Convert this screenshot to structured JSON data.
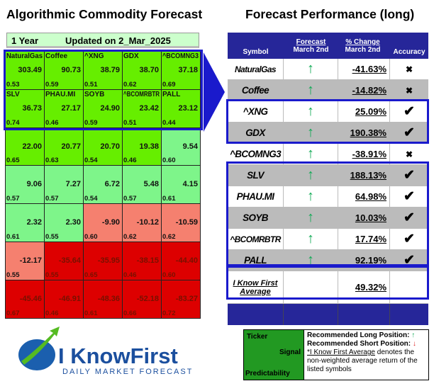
{
  "left": {
    "title": "Algorithmic Commodity Forecast",
    "period": "1 Year",
    "updated": "Updated on 2_Mar_2025",
    "cells": [
      {
        "ticker": "NaturalGas",
        "value": "303.49",
        "pred": "0.53",
        "color": "green"
      },
      {
        "ticker": "Coffee",
        "value": "90.73",
        "pred": "0.59",
        "color": "green"
      },
      {
        "ticker": "^XNG",
        "value": "38.79",
        "pred": "0.51",
        "color": "green"
      },
      {
        "ticker": "GDX",
        "value": "38.70",
        "pred": "0.62",
        "color": "green"
      },
      {
        "ticker": "^BCOMNG3",
        "value": "37.18",
        "pred": "0.69",
        "color": "green"
      },
      {
        "ticker": "SLV",
        "value": "36.73",
        "pred": "0.74",
        "color": "green"
      },
      {
        "ticker": "PHAU.MI",
        "value": "27.17",
        "pred": "0.46",
        "color": "green"
      },
      {
        "ticker": "SOYB",
        "value": "24.90",
        "pred": "0.59",
        "color": "green"
      },
      {
        "ticker": "^BCOMRBTR",
        "value": "23.42",
        "pred": "0.51",
        "color": "green"
      },
      {
        "ticker": "PALL",
        "value": "23.12",
        "pred": "0.44",
        "color": "green"
      },
      {
        "value": "22.00",
        "pred": "0.65",
        "color": "green"
      },
      {
        "value": "20.77",
        "pred": "0.63",
        "color": "green"
      },
      {
        "value": "20.70",
        "pred": "0.54",
        "color": "green"
      },
      {
        "value": "19.38",
        "pred": "0.46",
        "color": "green"
      },
      {
        "value": "9.54",
        "pred": "0.60",
        "color": "light-green"
      },
      {
        "value": "9.06",
        "pred": "0.57",
        "color": "light-green"
      },
      {
        "value": "7.27",
        "pred": "0.57",
        "color": "light-green"
      },
      {
        "value": "6.72",
        "pred": "0.54",
        "color": "light-green"
      },
      {
        "value": "5.48",
        "pred": "0.57",
        "color": "light-green"
      },
      {
        "value": "4.15",
        "pred": "0.61",
        "color": "light-green"
      },
      {
        "value": "2.32",
        "pred": "0.61",
        "color": "light-green"
      },
      {
        "value": "2.30",
        "pred": "0.55",
        "color": "light-green"
      },
      {
        "value": "-9.90",
        "pred": "0.60",
        "color": "light-red"
      },
      {
        "value": "-10.12",
        "pred": "0.62",
        "color": "light-red"
      },
      {
        "value": "-10.59",
        "pred": "0.62",
        "color": "light-red"
      },
      {
        "value": "-12.17",
        "pred": "0.55",
        "color": "light-red"
      },
      {
        "value": "-35.64",
        "pred": "0.55",
        "color": "red"
      },
      {
        "value": "-35.95",
        "pred": "0.65",
        "color": "red"
      },
      {
        "value": "-38.15",
        "pred": "0.46",
        "color": "red"
      },
      {
        "value": "-44.40",
        "pred": "0.60",
        "color": "red"
      },
      {
        "value": "-45.46",
        "pred": "0.67",
        "color": "red"
      },
      {
        "value": "-46.91",
        "pred": "0.46",
        "color": "red"
      },
      {
        "value": "-48.36",
        "pred": "0.61",
        "color": "red"
      },
      {
        "value": "-52.18",
        "pred": "0.66",
        "color": "red"
      },
      {
        "value": "-83.27",
        "pred": "0.72",
        "color": "red"
      }
    ]
  },
  "right": {
    "title": "Forecast Performance (long)",
    "headers": {
      "symbol": "Symbol",
      "forecast": "Forecast",
      "forecast_date": "March 2nd",
      "change": "% Change",
      "change_date": "March 2nd",
      "accuracy": "Accuracy"
    },
    "rows": [
      {
        "symbol": "NaturalGas",
        "signal": "↑",
        "change": "-41.63%",
        "accuracy": "✖"
      },
      {
        "symbol": "Coffee",
        "signal": "↑",
        "change": "-14.82%",
        "accuracy": "✖"
      },
      {
        "symbol": "^XNG",
        "signal": "↑",
        "change": "25.09%",
        "accuracy": "✔"
      },
      {
        "symbol": "GDX",
        "signal": "↑",
        "change": "190.38%",
        "accuracy": "✔"
      },
      {
        "symbol": "^BCOMNG3",
        "signal": "↑",
        "change": "-38.91%",
        "accuracy": "✖"
      },
      {
        "symbol": "SLV",
        "signal": "↑",
        "change": "188.13%",
        "accuracy": "✔"
      },
      {
        "symbol": "PHAU.MI",
        "signal": "↑",
        "change": "64.98%",
        "accuracy": "✔"
      },
      {
        "symbol": "SOYB",
        "signal": "↑",
        "change": "10.03%",
        "accuracy": "✔"
      },
      {
        "symbol": "^BCOMRBTR",
        "signal": "↑",
        "change": "17.74%",
        "accuracy": "✔"
      },
      {
        "symbol": "PALL",
        "signal": "↑",
        "change": "92.19%",
        "accuracy": "✔"
      }
    ],
    "average": {
      "label1": "I Know First",
      "label2": "Average",
      "change": "49.32%"
    }
  },
  "legend": {
    "ticker": "Ticker",
    "signal": "Signal",
    "predictability": "Predictability",
    "long": "Recommended Long Position:",
    "short": "Recommended Short Position:",
    "long_icon": "↑",
    "short_icon": "↓",
    "note_link": "*I Know First Average",
    "note": " denotes the non-weighted average return of the listed symbols"
  },
  "logo": {
    "name": "I KnowFirst",
    "tagline": "Daily Market Forecast"
  },
  "colors": {
    "green": "#66ee00",
    "light-green": "#7ef58a",
    "light-red": "#f5806f",
    "red": "#dd0000",
    "navy": "#262699",
    "highlight": "#1a1acc"
  }
}
